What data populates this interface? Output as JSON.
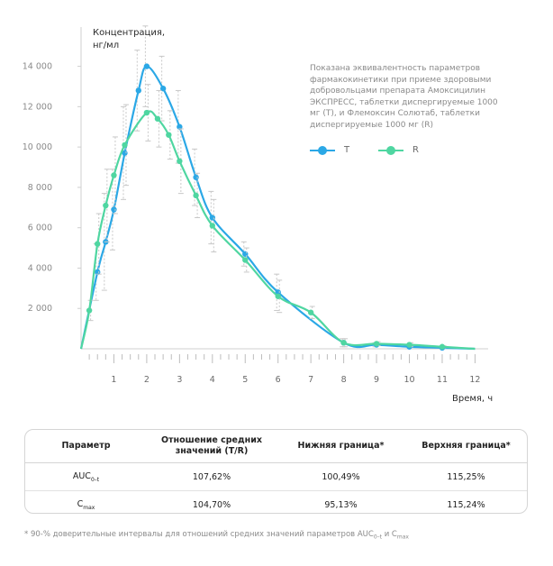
{
  "chart_data": {
    "type": "line",
    "ylabel": "Концентрация,\nнг/мл",
    "xlabel": "Время, ч",
    "xlim": [
      0,
      12.4
    ],
    "ylim": [
      0,
      15500
    ],
    "xticks": [
      "1",
      "2",
      "3",
      "4",
      "5",
      "6",
      "7",
      "8",
      "9",
      "10",
      "11",
      "12"
    ],
    "yticks": [
      "2 000",
      "4 000",
      "6 000",
      "8 000",
      "10 000",
      "12 000",
      "14 000"
    ],
    "annotation": "Показана эквивалентность параметров фармакокинетики при приеме здоровыми добровольцами препарата Амоксицилин ЭКСПРЕСС, таблетки диспергируемые 1000 мг (T), и Флемоксин Солютаб, таблетки диспергируемые 1000 мг (R)",
    "legend_position": "top-right",
    "series": [
      {
        "name": "T",
        "color": "#2ba8e6",
        "x": [
          0,
          0.5,
          0.75,
          1,
          1.33,
          1.75,
          2,
          2.5,
          3,
          3.5,
          4,
          5,
          6,
          8,
          9,
          10,
          11,
          12
        ],
        "y": [
          0,
          3800,
          5300,
          6900,
          9700,
          12800,
          14000,
          12900,
          11000,
          8500,
          6500,
          4700,
          2800,
          300,
          200,
          100,
          50,
          0
        ],
        "err": [
          0,
          1400,
          2400,
          2000,
          2300,
          2000,
          2000,
          1600,
          1800,
          1400,
          1300,
          600,
          900,
          200,
          100,
          100,
          50,
          0
        ]
      },
      {
        "name": "R",
        "color": "#4fd6a1",
        "x": [
          0,
          0.25,
          0.5,
          0.75,
          1,
          1.33,
          2,
          2.33,
          2.67,
          3,
          3.5,
          4,
          5,
          6,
          7,
          8,
          9,
          10,
          11,
          12
        ],
        "y": [
          0,
          1900,
          5200,
          7100,
          8600,
          10100,
          11700,
          11400,
          10600,
          9300,
          7600,
          6100,
          4400,
          2600,
          1800,
          300,
          250,
          200,
          100,
          0
        ],
        "err": [
          0,
          500,
          1500,
          1800,
          1900,
          2000,
          1400,
          1400,
          1200,
          1600,
          1100,
          1300,
          600,
          800,
          300,
          200,
          100,
          100,
          50,
          0
        ]
      }
    ]
  },
  "table": {
    "headers": [
      "Параметр",
      "Отношение средних значений (T/R)",
      "Нижняя граница*",
      "Верхняя граница*"
    ],
    "rows": [
      {
        "param": "AUC",
        "sub": "0–t",
        "ratio": "107,62%",
        "lower": "100,49%",
        "upper": "115,25%"
      },
      {
        "param": "C",
        "sub": "max",
        "ratio": "104,70%",
        "lower": "95,13%",
        "upper": "115,24%"
      }
    ]
  },
  "footnote": {
    "text": "* 90-% доверительные интервалы для отношений средних значений параметров AUC",
    "sub1": "0–t",
    "mid": " и C",
    "sub2": "max"
  }
}
